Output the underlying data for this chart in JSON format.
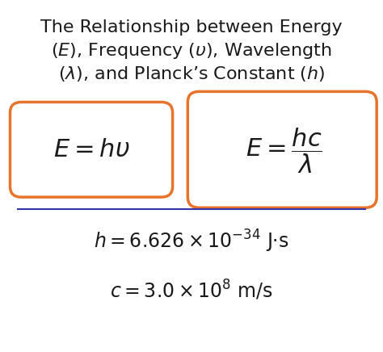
{
  "title_line1": "The Relationship between Energy",
  "title_line2": "($E$), Frequency ($\\upsilon$), Wavelength",
  "title_line3": "($\\lambda$), and Planck’s Constant ($h$)",
  "formula1": "$E=h\\upsilon$",
  "formula2": "$E = \\dfrac{hc}{\\lambda}$",
  "constant1": "$h = 6.626 \\times 10^{-34}$ J·s",
  "constant2": "$c = 3.0 \\times 10^{8}$ m/s",
  "box_color": "#E8732A",
  "line_color": "#3333AA",
  "bg_color": "#FFFFFF",
  "text_color": "#1a1a1a",
  "title_fontsize": 16,
  "formula_fontsize": 22,
  "constant_fontsize": 17
}
